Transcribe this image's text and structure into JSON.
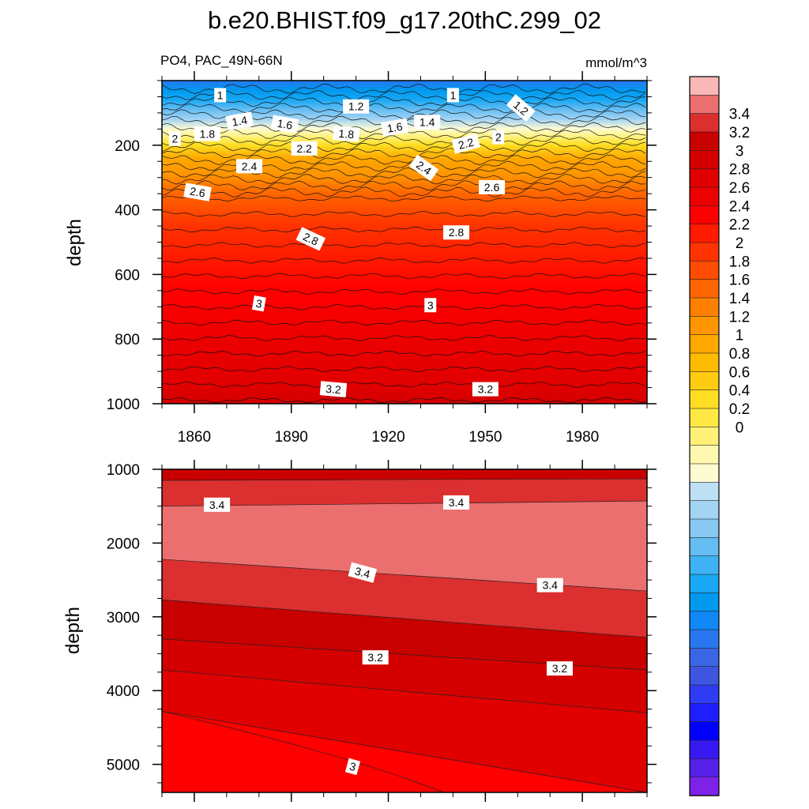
{
  "chart_data": {
    "type": "contour",
    "title": "b.e20.BHIST.f09_g17.20thC.299_02",
    "variable_label": "PO4, PAC_49N-66N",
    "units_label": "mmol/m^3",
    "xlim": [
      1850,
      2000
    ],
    "x_ticks": [
      1860,
      1890,
      1920,
      1950,
      1980
    ],
    "upper_panel": {
      "ylabel": "depth",
      "ylim": [
        0,
        1000
      ],
      "y_ticks": [
        200,
        400,
        600,
        800,
        1000
      ],
      "profile": [
        {
          "depth": 0,
          "value": 0.6
        },
        {
          "depth": 30,
          "value": 0.85
        },
        {
          "depth": 60,
          "value": 1.0
        },
        {
          "depth": 90,
          "value": 1.15
        },
        {
          "depth": 120,
          "value": 1.35
        },
        {
          "depth": 150,
          "value": 1.55
        },
        {
          "depth": 175,
          "value": 1.8
        },
        {
          "depth": 200,
          "value": 2.0
        },
        {
          "depth": 240,
          "value": 2.2
        },
        {
          "depth": 290,
          "value": 2.4
        },
        {
          "depth": 350,
          "value": 2.6
        },
        {
          "depth": 450,
          "value": 2.75
        },
        {
          "depth": 550,
          "value": 2.9
        },
        {
          "depth": 650,
          "value": 3.0
        },
        {
          "depth": 800,
          "value": 3.1
        },
        {
          "depth": 950,
          "value": 3.2
        },
        {
          "depth": 1000,
          "value": 3.25
        }
      ],
      "contour_labels": [
        {
          "text": "1",
          "year": 1868,
          "depth": 45,
          "angle": 0
        },
        {
          "text": "1",
          "year": 1940,
          "depth": 45,
          "angle": 0
        },
        {
          "text": "1.2",
          "year": 1910,
          "depth": 80,
          "angle": 0
        },
        {
          "text": "1.2",
          "year": 1961,
          "depth": 85,
          "angle": 40
        },
        {
          "text": "1.4",
          "year": 1874,
          "depth": 125,
          "angle": -10
        },
        {
          "text": "1.4",
          "year": 1932,
          "depth": 128,
          "angle": 0
        },
        {
          "text": "1.6",
          "year": 1888,
          "depth": 135,
          "angle": 10
        },
        {
          "text": "1.6",
          "year": 1922,
          "depth": 145,
          "angle": -10
        },
        {
          "text": "1.8",
          "year": 1864,
          "depth": 165,
          "angle": 0
        },
        {
          "text": "1.8",
          "year": 1907,
          "depth": 165,
          "angle": 5
        },
        {
          "text": "2",
          "year": 1854,
          "depth": 180,
          "angle": 0
        },
        {
          "text": "2",
          "year": 1954,
          "depth": 175,
          "angle": 0
        },
        {
          "text": "2.2",
          "year": 1894,
          "depth": 210,
          "angle": 0
        },
        {
          "text": "2.2",
          "year": 1944,
          "depth": 195,
          "angle": -15
        },
        {
          "text": "2.4",
          "year": 1877,
          "depth": 265,
          "angle": 0
        },
        {
          "text": "2.4",
          "year": 1931,
          "depth": 270,
          "angle": 35
        },
        {
          "text": "2.6",
          "year": 1861,
          "depth": 345,
          "angle": 10
        },
        {
          "text": "2.6",
          "year": 1952,
          "depth": 330,
          "angle": 0
        },
        {
          "text": "2.8",
          "year": 1896,
          "depth": 490,
          "angle": 25
        },
        {
          "text": "2.8",
          "year": 1941,
          "depth": 470,
          "angle": 0
        },
        {
          "text": "3",
          "year": 1880,
          "depth": 690,
          "angle": 10
        },
        {
          "text": "3",
          "year": 1933,
          "depth": 695,
          "angle": 0
        },
        {
          "text": "3.2",
          "year": 1903,
          "depth": 955,
          "angle": 5
        },
        {
          "text": "3.2",
          "year": 1950,
          "depth": 955,
          "angle": 0
        }
      ]
    },
    "lower_panel": {
      "ylabel": "depth",
      "ylim": [
        1000,
        5380
      ],
      "y_ticks": [
        1000,
        2000,
        3000,
        4000,
        5000
      ],
      "contours": [
        {
          "level": 3.3,
          "depths_start_end": [
            1150,
            1130
          ]
        },
        {
          "level": 3.4,
          "depths_start_end": [
            1500,
            1430
          ]
        },
        {
          "level": 3.4,
          "depths_start_end": [
            2220,
            2650
          ]
        },
        {
          "level": 3.3,
          "depths_start_end": [
            2770,
            3280
          ]
        },
        {
          "level": 3.2,
          "depths_start_end": [
            3300,
            3720
          ]
        },
        {
          "level": 3.1,
          "depths_start_end": [
            3720,
            4300
          ]
        },
        {
          "level": 3.0,
          "depths_start_end": [
            4280,
            5380
          ]
        }
      ],
      "contour_labels": [
        {
          "text": "3.4",
          "year": 1867,
          "depth": 1480,
          "angle": 0
        },
        {
          "text": "3.4",
          "year": 1941,
          "depth": 1450,
          "angle": 0
        },
        {
          "text": "3.4",
          "year": 1912,
          "depth": 2400,
          "angle": 15
        },
        {
          "text": "3.4",
          "year": 1970,
          "depth": 2570,
          "angle": 0
        },
        {
          "text": "3.2",
          "year": 1916,
          "depth": 3550,
          "angle": 0
        },
        {
          "text": "3.2",
          "year": 1973,
          "depth": 3700,
          "angle": 0
        },
        {
          "text": "3",
          "year": 1909,
          "depth": 5030,
          "angle": 15
        }
      ]
    },
    "colorbar": {
      "labels": [
        "3.4",
        "3.2",
        "3",
        "2.8",
        "2.6",
        "2.4",
        "2.2",
        "2",
        "1.8",
        "1.6",
        "1.4",
        "1.2",
        "1",
        "0.8",
        "0.6",
        "0.4",
        "0.2",
        "0"
      ],
      "colors_top_to_bottom": [
        "#f9b7b7",
        "#eb6f6f",
        "#dc2f2f",
        "#c80000",
        "#d40000",
        "#e00000",
        "#ec0000",
        "#ff0000",
        "#ff1a00",
        "#ff3300",
        "#ff4c00",
        "#ff6600",
        "#ff8000",
        "#ff9500",
        "#ffa800",
        "#ffbb00",
        "#ffcc11",
        "#ffdd22",
        "#ffe844",
        "#fff177",
        "#fff9b0",
        "#fffbd0",
        "#bde0f5",
        "#a3d4f4",
        "#88c8f2",
        "#66bdf2",
        "#3eb2f5",
        "#19a8f5",
        "#0099ee",
        "#1088f7",
        "#2877f0",
        "#3a66e5",
        "#3d55df",
        "#2f3cf3",
        "#1e1eff",
        "#0000ff",
        "#3818f0",
        "#5520e8",
        "#7e22e8"
      ]
    }
  }
}
